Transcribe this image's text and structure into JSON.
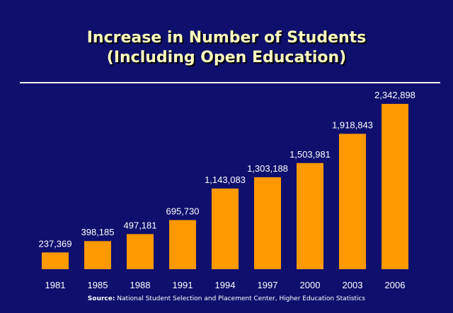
{
  "title_line1": "Increase in Number of Students",
  "title_line2": "(Including Open Education)",
  "source_label": "Source:",
  "source_text": "National Student Selection and Placement Center, Higher Education Statistics",
  "colors": {
    "background": "#0f0f6e",
    "bar": "#ff9900",
    "title": "#ffffc0",
    "text": "#ffffff"
  },
  "chart_data": {
    "type": "bar",
    "title": "Increase in Number of Students (Including Open Education)",
    "categories": [
      "1981",
      "1985",
      "1988",
      "1991",
      "1994",
      "1997",
      "2000",
      "2003",
      "2006"
    ],
    "values": [
      237369,
      398185,
      497181,
      695730,
      1143083,
      1303188,
      1503981,
      1918843,
      2342898
    ],
    "data_labels": [
      "237,369",
      "398,185",
      "497,181",
      "695,730",
      "1,143,083",
      "1,303,188",
      "1,503,981",
      "1,918,843",
      "2,342,898"
    ],
    "xlabel": "",
    "ylabel": "",
    "ylim": [
      0,
      2342898
    ],
    "grid": false,
    "legend": "none"
  }
}
